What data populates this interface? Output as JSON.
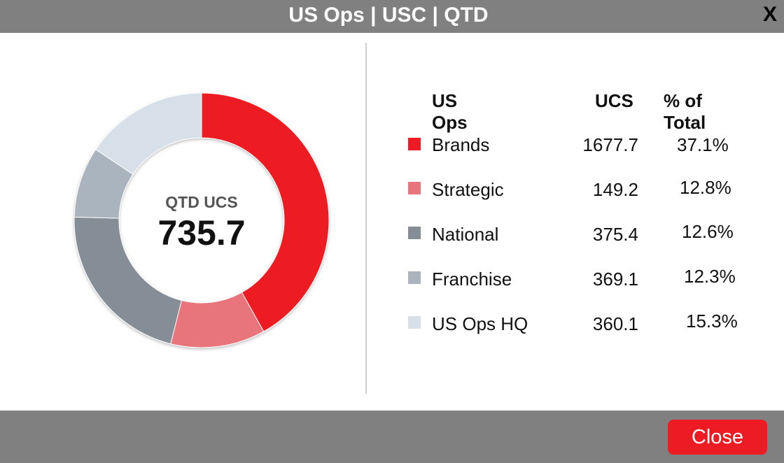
{
  "title": "US Ops | USC | QTD",
  "close_x": "X",
  "center": {
    "label": "QTD UCS",
    "value": "735.7"
  },
  "table": {
    "headers": {
      "name": "US Ops",
      "ucs": "UCS",
      "pct": "% of Total"
    },
    "rows": [
      {
        "name": "Brands",
        "ucs": "1677.7",
        "pct": "37.1%",
        "color": "#ed1c24",
        "share": 0.419
      },
      {
        "name": "Strategic",
        "ucs": "149.2",
        "pct": "12.8%",
        "color": "#e8757b",
        "share": 0.12
      },
      {
        "name": "National",
        "ucs": "375.4",
        "pct": "12.6%",
        "color": "#858d96",
        "share": 0.215
      },
      {
        "name": "Franchise",
        "ucs": "369.1",
        "pct": "12.3%",
        "color": "#a9b4be",
        "share": 0.09
      },
      {
        "name": "US Ops HQ",
        "ucs": "360.1",
        "pct": "15.3%",
        "color": "#d7dfe8",
        "share": 0.156
      }
    ]
  },
  "footer": {
    "close_label": "Close"
  }
}
